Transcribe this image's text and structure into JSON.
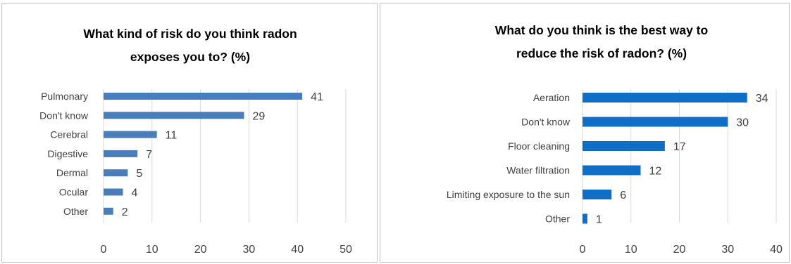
{
  "chart_data": [
    {
      "type": "bar",
      "orientation": "horizontal",
      "title": "What kind of risk do you think radon exposes you to? (%)",
      "title_lines": [
        "What kind of risk do you think radon",
        "exposes you to? (%)"
      ],
      "categories": [
        "Pulmonary",
        "Don't know",
        "Cerebral",
        "Digestive",
        "Dermal",
        "Ocular",
        "Other"
      ],
      "values": [
        41,
        29,
        11,
        7,
        5,
        4,
        2
      ],
      "xlim": [
        0,
        50
      ],
      "xticks": [
        "0",
        "10",
        "20",
        "30",
        "40",
        "50"
      ],
      "grid": "vertical",
      "legend": "none",
      "data_labels": true
    },
    {
      "type": "bar",
      "orientation": "horizontal",
      "title": "What do you think is the best way to reduce the risk of radon? (%)",
      "title_lines": [
        "What do you think is the best way to",
        "reduce the risk of radon? (%)"
      ],
      "categories": [
        "Aeration",
        "Don't know",
        "Floor cleaning",
        "Water filtration",
        "Limiting exposure to the sun",
        "Other"
      ],
      "values": [
        34,
        30,
        17,
        12,
        6,
        1
      ],
      "xlim": [
        0,
        40
      ],
      "xticks": [
        "0",
        "10",
        "20",
        "30",
        "40"
      ],
      "grid": "vertical",
      "legend": "none",
      "data_labels": true
    }
  ],
  "colors": {
    "bar_left": "#4a7ebb",
    "bar_right": "#0f6fc6",
    "grid": "#d9d9d9",
    "text": "#404040",
    "title": "#000000"
  }
}
